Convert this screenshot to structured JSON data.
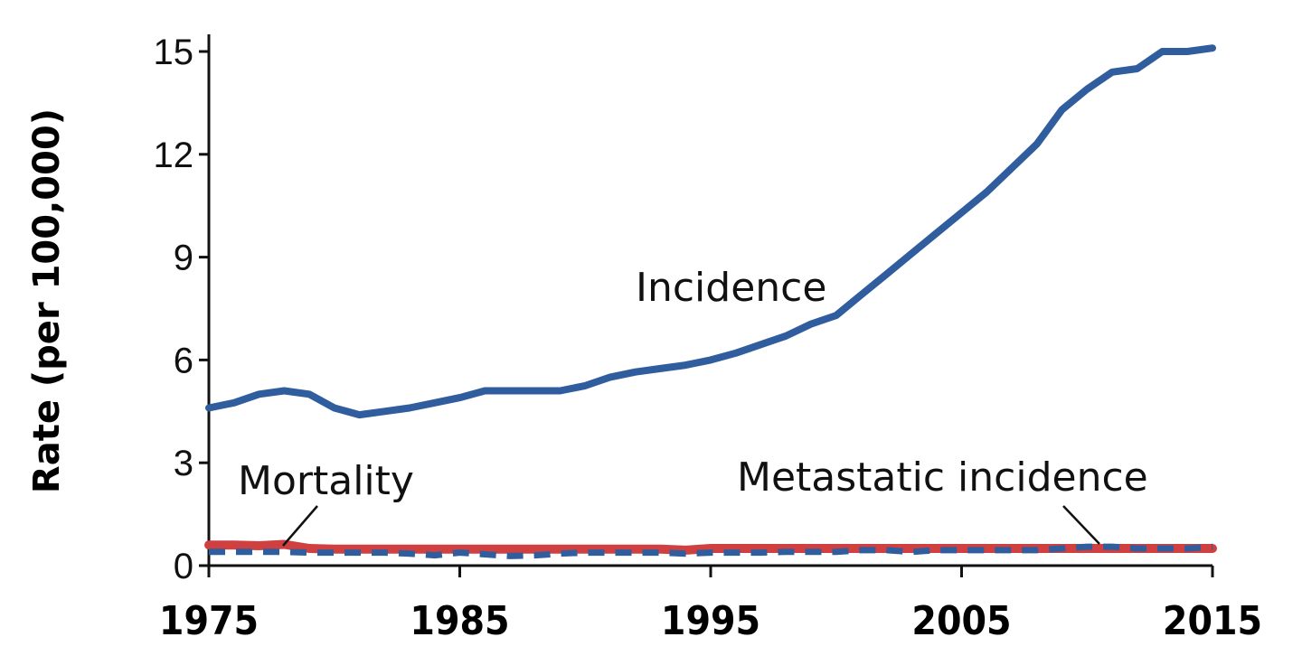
{
  "chart_data": {
    "type": "line",
    "title": "",
    "xlabel": "",
    "ylabel": "Rate (per 100,000)",
    "xlim": [
      1975,
      2015
    ],
    "ylim": [
      0,
      15
    ],
    "xticks": [
      1975,
      1985,
      1995,
      2005,
      2015
    ],
    "yticks": [
      0,
      3,
      6,
      9,
      12,
      15
    ],
    "grid": false,
    "colors": {
      "incidence": "#2f5d9e",
      "mortality": "#d04040",
      "metastatic": "#2f5d9e"
    },
    "x": [
      1975,
      1976,
      1977,
      1978,
      1979,
      1980,
      1981,
      1982,
      1983,
      1984,
      1985,
      1986,
      1987,
      1988,
      1989,
      1990,
      1991,
      1992,
      1993,
      1994,
      1995,
      1996,
      1997,
      1998,
      1999,
      2000,
      2001,
      2002,
      2003,
      2004,
      2005,
      2006,
      2007,
      2008,
      2009,
      2010,
      2011,
      2012,
      2013,
      2014,
      2015
    ],
    "series": [
      {
        "name": "Incidence",
        "style": "solid",
        "values": [
          4.6,
          4.75,
          5.0,
          5.1,
          5.0,
          4.6,
          4.4,
          4.5,
          4.6,
          4.75,
          4.9,
          5.1,
          5.1,
          5.1,
          5.1,
          5.25,
          5.5,
          5.65,
          5.75,
          5.85,
          6.0,
          6.2,
          6.45,
          6.7,
          7.05,
          7.3,
          7.9,
          8.5,
          9.1,
          9.7,
          10.3,
          10.9,
          11.6,
          12.3,
          13.3,
          13.9,
          14.4,
          14.5,
          15.0,
          15.0,
          15.1
        ]
      },
      {
        "name": "Mortality",
        "style": "solid",
        "values": [
          0.6,
          0.6,
          0.58,
          0.62,
          0.5,
          0.48,
          0.48,
          0.48,
          0.48,
          0.48,
          0.48,
          0.48,
          0.48,
          0.48,
          0.48,
          0.48,
          0.48,
          0.48,
          0.48,
          0.45,
          0.5,
          0.5,
          0.5,
          0.5,
          0.5,
          0.5,
          0.5,
          0.5,
          0.5,
          0.5,
          0.5,
          0.5,
          0.5,
          0.5,
          0.5,
          0.5,
          0.5,
          0.5,
          0.5,
          0.5,
          0.5
        ]
      },
      {
        "name": "Metastatic incidence",
        "style": "dashed",
        "values": [
          0.4,
          0.4,
          0.4,
          0.4,
          0.38,
          0.38,
          0.38,
          0.38,
          0.35,
          0.3,
          0.38,
          0.33,
          0.28,
          0.3,
          0.35,
          0.38,
          0.38,
          0.38,
          0.38,
          0.35,
          0.38,
          0.38,
          0.38,
          0.4,
          0.4,
          0.4,
          0.45,
          0.45,
          0.4,
          0.45,
          0.45,
          0.45,
          0.45,
          0.45,
          0.5,
          0.55,
          0.55,
          0.5,
          0.5,
          0.5,
          0.55
        ]
      }
    ],
    "annotations": {
      "incidence": "Incidence",
      "mortality": "Mortality",
      "metastatic": "Metastatic incidence"
    }
  }
}
